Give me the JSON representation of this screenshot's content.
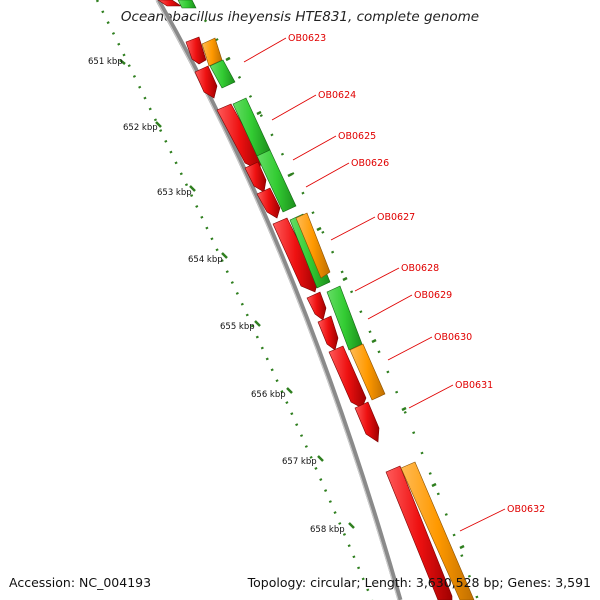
{
  "title": "Oceanobacillus iheyensis HTE831, complete genome",
  "footer": {
    "accession": "Accession: NC_004193",
    "summary": "Topology: circular; Length: 3,630,528 bp; Genes: 3,591"
  },
  "scale_labels": [
    "651 kbp",
    "652 kbp",
    "653 kbp",
    "654 kbp",
    "655 kbp",
    "656 kbp",
    "657 kbp",
    "658 kbp"
  ],
  "gene_labels": [
    "OB0623",
    "OB0624",
    "OB0625",
    "OB0626",
    "OB0627",
    "OB0628",
    "OB0629",
    "OB0630",
    "OB0631",
    "OB0632"
  ],
  "colors": {
    "backbone": "#8a8a8a",
    "red_feature": "#ee1111",
    "green_feature": "#33cc33",
    "orange_feature": "#ff9900",
    "tick": "#2f7f1f",
    "label": "#e00000"
  }
}
